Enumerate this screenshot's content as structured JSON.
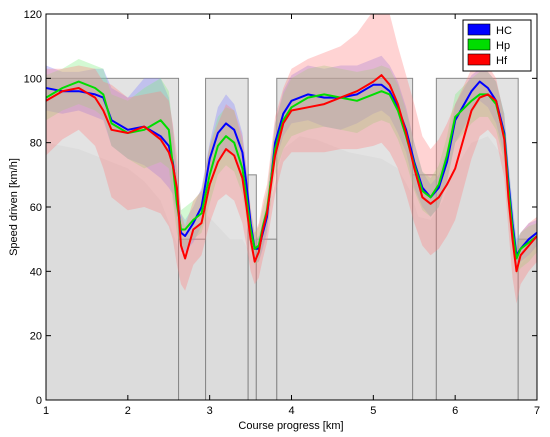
{
  "chart_data": {
    "type": "line",
    "title": "",
    "xlabel": "Course progress [km]",
    "ylabel": "Speed driven [km/h]",
    "xlim": [
      1,
      7
    ],
    "ylim": [
      0,
      120
    ],
    "x_ticks": [
      1,
      2,
      3,
      4,
      5,
      6,
      7
    ],
    "y_ticks": [
      0,
      20,
      40,
      60,
      80,
      100,
      120
    ],
    "grid": false,
    "legend_position": "top-right",
    "background_profile": {
      "color": "#e3e3e3",
      "points": [
        [
          1.0,
          80
        ],
        [
          1.2,
          79
        ],
        [
          1.4,
          78
        ],
        [
          1.6,
          76
        ],
        [
          1.8,
          74
        ],
        [
          2.0,
          72
        ],
        [
          2.2,
          68
        ],
        [
          2.4,
          62
        ],
        [
          2.55,
          52
        ],
        [
          2.65,
          45
        ],
        [
          2.8,
          52
        ],
        [
          2.95,
          58
        ],
        [
          3.1,
          54
        ],
        [
          3.25,
          50
        ],
        [
          3.4,
          50
        ],
        [
          3.55,
          43
        ],
        [
          3.65,
          50
        ],
        [
          3.75,
          62
        ],
        [
          3.9,
          78
        ],
        [
          4.1,
          82
        ],
        [
          4.3,
          81
        ],
        [
          4.5,
          79
        ],
        [
          4.7,
          77
        ],
        [
          4.9,
          76
        ],
        [
          5.1,
          75
        ],
        [
          5.3,
          72
        ],
        [
          5.45,
          65
        ],
        [
          5.55,
          57
        ],
        [
          5.7,
          56
        ],
        [
          5.85,
          62
        ],
        [
          6.0,
          72
        ],
        [
          6.2,
          80
        ],
        [
          6.4,
          82
        ],
        [
          6.6,
          75
        ],
        [
          6.7,
          55
        ],
        [
          6.8,
          42
        ],
        [
          6.9,
          45
        ],
        [
          7.0,
          50
        ]
      ]
    },
    "speed_limit_boxes": {
      "fill": "#d9d9d9",
      "stroke": "#888888",
      "segments": [
        {
          "x0": 1.0,
          "x1": 2.62,
          "y": 100
        },
        {
          "x0": 2.62,
          "x1": 2.95,
          "y": 50
        },
        {
          "x0": 2.95,
          "x1": 3.47,
          "y": 100
        },
        {
          "x0": 3.47,
          "x1": 3.57,
          "y": 70
        },
        {
          "x0": 3.57,
          "x1": 3.82,
          "y": 50
        },
        {
          "x0": 3.82,
          "x1": 5.48,
          "y": 100
        },
        {
          "x0": 5.48,
          "x1": 5.77,
          "y": 70
        },
        {
          "x0": 5.77,
          "x1": 6.77,
          "y": 100
        },
        {
          "x0": 6.77,
          "x1": 7.0,
          "y": 50
        }
      ]
    },
    "x": [
      1.0,
      1.2,
      1.4,
      1.6,
      1.7,
      1.8,
      2.0,
      2.2,
      2.4,
      2.5,
      2.55,
      2.6,
      2.65,
      2.7,
      2.8,
      2.9,
      3.0,
      3.1,
      3.2,
      3.3,
      3.4,
      3.45,
      3.5,
      3.55,
      3.6,
      3.65,
      3.7,
      3.8,
      3.9,
      4.0,
      4.2,
      4.4,
      4.6,
      4.8,
      5.0,
      5.1,
      5.2,
      5.3,
      5.4,
      5.5,
      5.6,
      5.7,
      5.8,
      5.9,
      6.0,
      6.2,
      6.3,
      6.4,
      6.5,
      6.6,
      6.65,
      6.7,
      6.75,
      6.8,
      6.9,
      7.0
    ],
    "series": [
      {
        "name": "HC",
        "color": "#0000ff",
        "band_color": "#8080ff",
        "values": [
          97,
          96,
          96,
          95,
          94,
          87,
          84,
          85,
          82,
          79,
          74,
          64,
          52,
          51,
          55,
          60,
          75,
          83,
          86,
          84,
          77,
          67,
          55,
          47,
          47,
          52,
          57,
          80,
          89,
          93,
          95,
          94,
          94,
          95,
          98,
          98,
          96,
          91,
          84,
          74,
          66,
          63,
          66,
          74,
          87,
          96,
          99,
          97,
          93,
          83,
          68,
          55,
          45,
          47,
          50,
          52
        ],
        "band_upper": [
          104,
          102,
          102,
          103,
          103,
          97,
          94,
          100,
          100,
          94,
          85,
          72,
          58,
          56,
          60,
          66,
          80,
          91,
          95,
          92,
          83,
          72,
          58,
          50,
          51,
          56,
          62,
          86,
          96,
          101,
          104,
          103,
          104,
          104,
          106,
          107,
          104,
          99,
          91,
          80,
          71,
          67,
          70,
          78,
          92,
          101,
          103,
          102,
          99,
          89,
          74,
          61,
          50,
          52,
          55,
          56
        ],
        "band_lower": [
          90,
          89,
          90,
          88,
          87,
          79,
          75,
          73,
          69,
          66,
          64,
          56,
          46,
          46,
          49,
          54,
          69,
          75,
          77,
          76,
          70,
          61,
          50,
          43,
          43,
          47,
          52,
          74,
          82,
          86,
          87,
          85,
          84,
          86,
          89,
          90,
          88,
          83,
          77,
          66,
          60,
          57,
          60,
          68,
          80,
          89,
          93,
          91,
          86,
          76,
          62,
          50,
          41,
          43,
          45,
          48
        ]
      },
      {
        "name": "Hp",
        "color": "#00dd00",
        "band_color": "#80ee80",
        "values": [
          94,
          97,
          99,
          97,
          95,
          86,
          83,
          84,
          87,
          84,
          73,
          61,
          53,
          53,
          56,
          58,
          70,
          79,
          82,
          80,
          72,
          63,
          53,
          47,
          48,
          54,
          59,
          78,
          87,
          91,
          94,
          95,
          94,
          93,
          95,
          96,
          95,
          90,
          82,
          73,
          65,
          63,
          67,
          76,
          88,
          93,
          95,
          95,
          92,
          82,
          66,
          53,
          44,
          47,
          49,
          51
        ],
        "band_upper": [
          101,
          103,
          106,
          104,
          103,
          95,
          93,
          97,
          100,
          96,
          84,
          70,
          59,
          60,
          62,
          65,
          79,
          88,
          91,
          90,
          80,
          70,
          59,
          52,
          54,
          60,
          65,
          86,
          95,
          100,
          103,
          104,
          103,
          102,
          103,
          104,
          103,
          98,
          90,
          80,
          71,
          69,
          73,
          82,
          95,
          100,
          102,
          102,
          99,
          89,
          73,
          59,
          49,
          52,
          54,
          55
        ],
        "band_lower": [
          87,
          90,
          92,
          90,
          88,
          79,
          75,
          72,
          74,
          72,
          62,
          52,
          47,
          47,
          50,
          52,
          61,
          70,
          73,
          71,
          64,
          56,
          47,
          42,
          43,
          48,
          53,
          70,
          78,
          82,
          84,
          85,
          84,
          83,
          86,
          87,
          86,
          81,
          74,
          65,
          59,
          57,
          60,
          68,
          80,
          86,
          88,
          88,
          84,
          74,
          58,
          46,
          39,
          41,
          43,
          46
        ]
      },
      {
        "name": "Hf",
        "color": "#ff0000",
        "band_color": "#ff8080",
        "values": [
          93,
          96,
          97,
          94,
          90,
          84,
          83,
          85,
          81,
          77,
          73,
          66,
          48,
          44,
          53,
          55,
          67,
          74,
          78,
          76,
          69,
          60,
          50,
          43,
          46,
          53,
          58,
          76,
          86,
          90,
          91,
          92,
          94,
          96,
          99,
          101,
          98,
          92,
          83,
          72,
          63,
          61,
          63,
          67,
          72,
          90,
          94,
          95,
          93,
          81,
          63,
          50,
          40,
          45,
          48,
          51
        ],
        "band_upper": [
          103,
          103,
          104,
          103,
          99,
          98,
          94,
          95,
          96,
          93,
          86,
          76,
          58,
          54,
          62,
          65,
          79,
          86,
          92,
          90,
          82,
          72,
          60,
          52,
          55,
          62,
          67,
          88,
          97,
          103,
          106,
          108,
          110,
          114,
          121,
          124,
          120,
          110,
          101,
          92,
          82,
          78,
          81,
          86,
          92,
          103,
          105,
          104,
          100,
          88,
          70,
          57,
          47,
          52,
          55,
          57
        ],
        "band_lower": [
          76,
          81,
          84,
          79,
          72,
          63,
          59,
          60,
          58,
          54,
          50,
          42,
          36,
          34,
          42,
          45,
          55,
          62,
          64,
          62,
          55,
          48,
          40,
          36,
          38,
          44,
          49,
          64,
          74,
          77,
          77,
          77,
          78,
          78,
          79,
          80,
          77,
          72,
          64,
          55,
          48,
          45,
          47,
          51,
          56,
          75,
          82,
          84,
          81,
          69,
          53,
          38,
          30,
          36,
          40,
          43
        ]
      }
    ]
  }
}
